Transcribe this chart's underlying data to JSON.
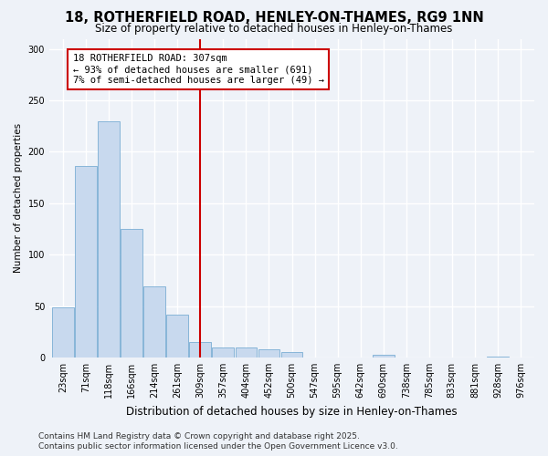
{
  "title": "18, ROTHERFIELD ROAD, HENLEY-ON-THAMES, RG9 1NN",
  "subtitle": "Size of property relative to detached houses in Henley-on-Thames",
  "xlabel": "Distribution of detached houses by size in Henley-on-Thames",
  "ylabel": "Number of detached properties",
  "categories": [
    "23sqm",
    "71sqm",
    "118sqm",
    "166sqm",
    "214sqm",
    "261sqm",
    "309sqm",
    "357sqm",
    "404sqm",
    "452sqm",
    "500sqm",
    "547sqm",
    "595sqm",
    "642sqm",
    "690sqm",
    "738sqm",
    "785sqm",
    "833sqm",
    "881sqm",
    "928sqm",
    "976sqm"
  ],
  "values": [
    49,
    186,
    230,
    125,
    69,
    42,
    15,
    10,
    10,
    8,
    5,
    0,
    0,
    0,
    3,
    0,
    0,
    0,
    0,
    1,
    0
  ],
  "bar_color": "#c8d9ee",
  "bar_edge_color": "#7aadd4",
  "vline_x": 6,
  "vline_color": "#cc0000",
  "annotation_title": "18 ROTHERFIELD ROAD: 307sqm",
  "annotation_line1": "← 93% of detached houses are smaller (691)",
  "annotation_line2": "7% of semi-detached houses are larger (49) →",
  "annotation_box_color": "#ffffff",
  "annotation_border_color": "#cc0000",
  "ylim": [
    0,
    310
  ],
  "yticks": [
    0,
    50,
    100,
    150,
    200,
    250,
    300
  ],
  "footer_line1": "Contains HM Land Registry data © Crown copyright and database right 2025.",
  "footer_line2": "Contains public sector information licensed under the Open Government Licence v3.0.",
  "background_color": "#eef2f8",
  "grid_color": "#ffffff",
  "title_fontsize": 10.5,
  "subtitle_fontsize": 8.5,
  "xlabel_fontsize": 8.5,
  "ylabel_fontsize": 7.5,
  "tick_fontsize": 7,
  "footer_fontsize": 6.5,
  "ann_fontsize": 7.5
}
